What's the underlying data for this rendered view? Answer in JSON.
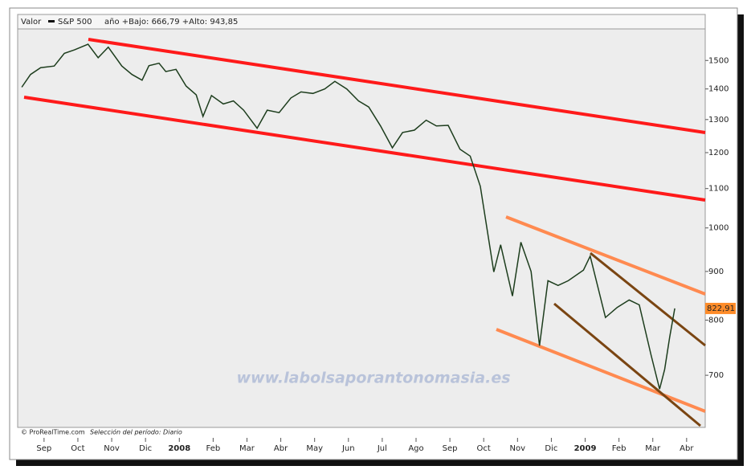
{
  "chart_data": {
    "type": "line",
    "header_label": "Valor",
    "header_info": "año +Bajo: 666,79 +Alto: 943,85",
    "footer_source": "© ProRealTime.com",
    "footer_period": "Selección del período: Diario",
    "watermark": "www.labolsaporantonomasia.es",
    "last_value_label": "822,91",
    "last_value_color": "#ff8c2a",
    "log_scale": true,
    "x": [
      -0.66,
      -0.4,
      -0.1,
      0.3,
      0.6,
      0.9,
      1.3,
      1.6,
      1.9,
      2.3,
      2.6,
      2.9,
      3.1,
      3.4,
      3.6,
      3.9,
      4.2,
      4.5,
      4.7,
      4.95,
      5.3,
      5.6,
      5.9,
      6.3,
      6.6,
      6.95,
      7.3,
      7.6,
      7.95,
      8.3,
      8.6,
      8.95,
      9.3,
      9.6,
      9.95,
      10.3,
      10.6,
      10.95,
      11.3,
      11.6,
      11.95,
      12.3,
      12.6,
      12.9,
      13.3,
      13.5,
      13.85,
      14.1,
      14.4,
      14.65,
      14.9,
      15.2,
      15.5,
      15.95,
      16.15,
      16.6,
      16.95,
      17.3,
      17.6,
      17.95,
      18.2,
      18.35,
      18.5,
      18.65
    ],
    "series": [
      {
        "name": "S&P 500",
        "color": "#1d3d1d",
        "values": [
          1406,
          1450,
          1474,
          1480,
          1526,
          1539,
          1560,
          1510,
          1549,
          1480,
          1450,
          1430,
          1481,
          1490,
          1460,
          1468,
          1410,
          1380,
          1310,
          1378,
          1350,
          1360,
          1330,
          1273,
          1330,
          1322,
          1370,
          1390,
          1385,
          1400,
          1426,
          1400,
          1360,
          1340,
          1280,
          1214,
          1260,
          1267,
          1298,
          1280,
          1282,
          1210,
          1190,
          1106,
          899,
          960,
          848,
          966,
          900,
          752,
          880,
          870,
          880,
          903,
          934,
          805,
          825,
          840,
          830,
          735,
          677,
          710,
          768,
          822.91
        ]
      }
    ],
    "xlim": [
      -0.78,
      19.55
    ],
    "xticks": [
      {
        "value": 0,
        "label": "Sep"
      },
      {
        "value": 1,
        "label": "Oct"
      },
      {
        "value": 2,
        "label": "Nov"
      },
      {
        "value": 3,
        "label": "Dic"
      },
      {
        "value": 4,
        "label": "2008"
      },
      {
        "value": 5,
        "label": "Feb"
      },
      {
        "value": 6,
        "label": "Mar"
      },
      {
        "value": 7,
        "label": "Abr"
      },
      {
        "value": 8,
        "label": "May"
      },
      {
        "value": 9,
        "label": "Jun"
      },
      {
        "value": 10,
        "label": "Jul"
      },
      {
        "value": 11,
        "label": "Ago"
      },
      {
        "value": 12,
        "label": "Sep"
      },
      {
        "value": 13,
        "label": "Oct"
      },
      {
        "value": 14,
        "label": "Nov"
      },
      {
        "value": 15,
        "label": "Dic"
      },
      {
        "value": 16,
        "label": "2009"
      },
      {
        "value": 17,
        "label": "Feb"
      },
      {
        "value": 18,
        "label": "Mar"
      },
      {
        "value": 19,
        "label": "Abr"
      }
    ],
    "ylim": [
      617,
      1619
    ],
    "yticks": [
      700,
      800,
      900,
      1000,
      1100,
      1200,
      1300,
      1400,
      1500
    ]
  }
}
